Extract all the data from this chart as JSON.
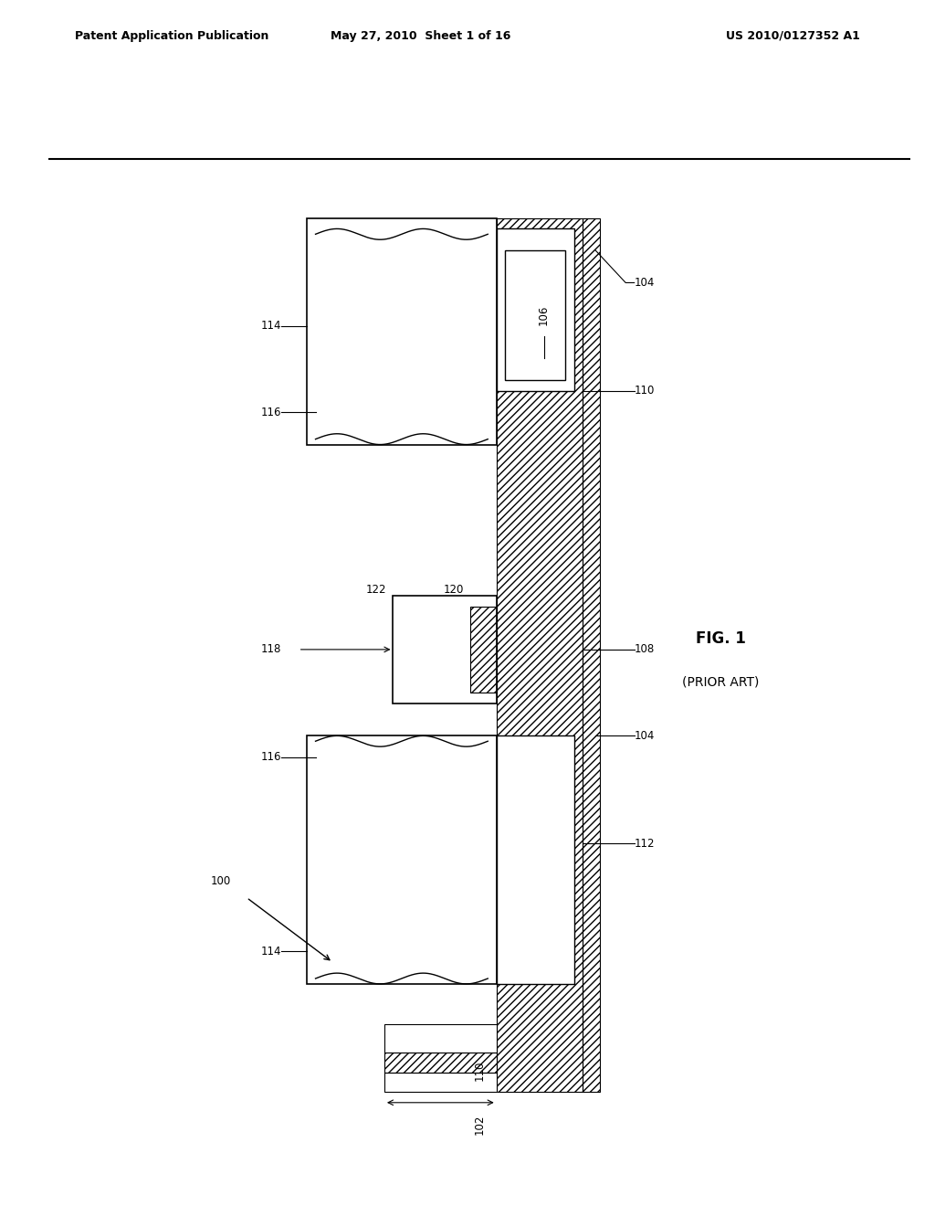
{
  "header_left": "Patent Application Publication",
  "header_mid": "May 27, 2010  Sheet 1 of 16",
  "header_right": "US 2010/0127352 A1",
  "fig_label": "FIG. 1",
  "fig_sublabel": "(PRIOR ART)",
  "ref_100": "100",
  "ref_102": "102",
  "ref_104": "104",
  "ref_106": "106",
  "ref_108": "108",
  "ref_110": "110",
  "ref_112": "112",
  "ref_114": "114",
  "ref_116": "116",
  "ref_118": "118",
  "ref_120": "120",
  "ref_122": "122",
  "bg_color": "#ffffff",
  "line_color": "#000000",
  "hatch_color": "#000000",
  "hatch_pattern": "////",
  "fig_width": 10.24,
  "fig_height": 13.2
}
